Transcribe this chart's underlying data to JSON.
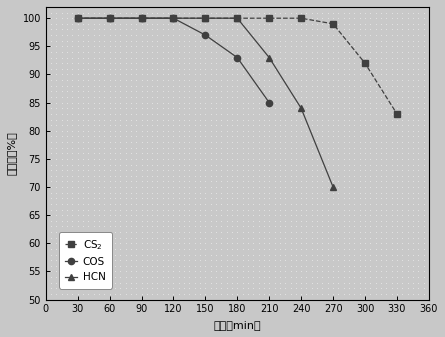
{
  "CS2": {
    "x": [
      30,
      60,
      90,
      120,
      150,
      180,
      210,
      240,
      270,
      300,
      330
    ],
    "y": [
      100,
      100,
      100,
      100,
      100,
      100,
      100,
      100,
      99,
      92,
      83
    ],
    "marker": "s",
    "label": "CS$_2$",
    "color": "#404040",
    "linestyle": "--"
  },
  "COS": {
    "x": [
      30,
      60,
      90,
      120,
      150,
      180,
      210
    ],
    "y": [
      100,
      100,
      100,
      100,
      97,
      93,
      85
    ],
    "marker": "o",
    "label": "COS",
    "color": "#404040",
    "linestyle": "-"
  },
  "HCN": {
    "x": [
      30,
      60,
      90,
      120,
      150,
      180,
      210,
      240,
      270
    ],
    "y": [
      100,
      100,
      100,
      100,
      100,
      100,
      93,
      84,
      70
    ],
    "marker": "^",
    "label": "HCN",
    "color": "#404040",
    "linestyle": "-"
  },
  "xlabel": "时间（min）",
  "ylabel": "去除率（%）",
  "xlim": [
    0,
    360
  ],
  "ylim": [
    50,
    102
  ],
  "xticks": [
    0,
    30,
    60,
    90,
    120,
    150,
    180,
    210,
    240,
    270,
    300,
    330,
    360
  ],
  "yticks": [
    50,
    55,
    60,
    65,
    70,
    75,
    80,
    85,
    90,
    95,
    100
  ],
  "background_color": "#c8c8c8",
  "plot_background": "#c8c8c8"
}
